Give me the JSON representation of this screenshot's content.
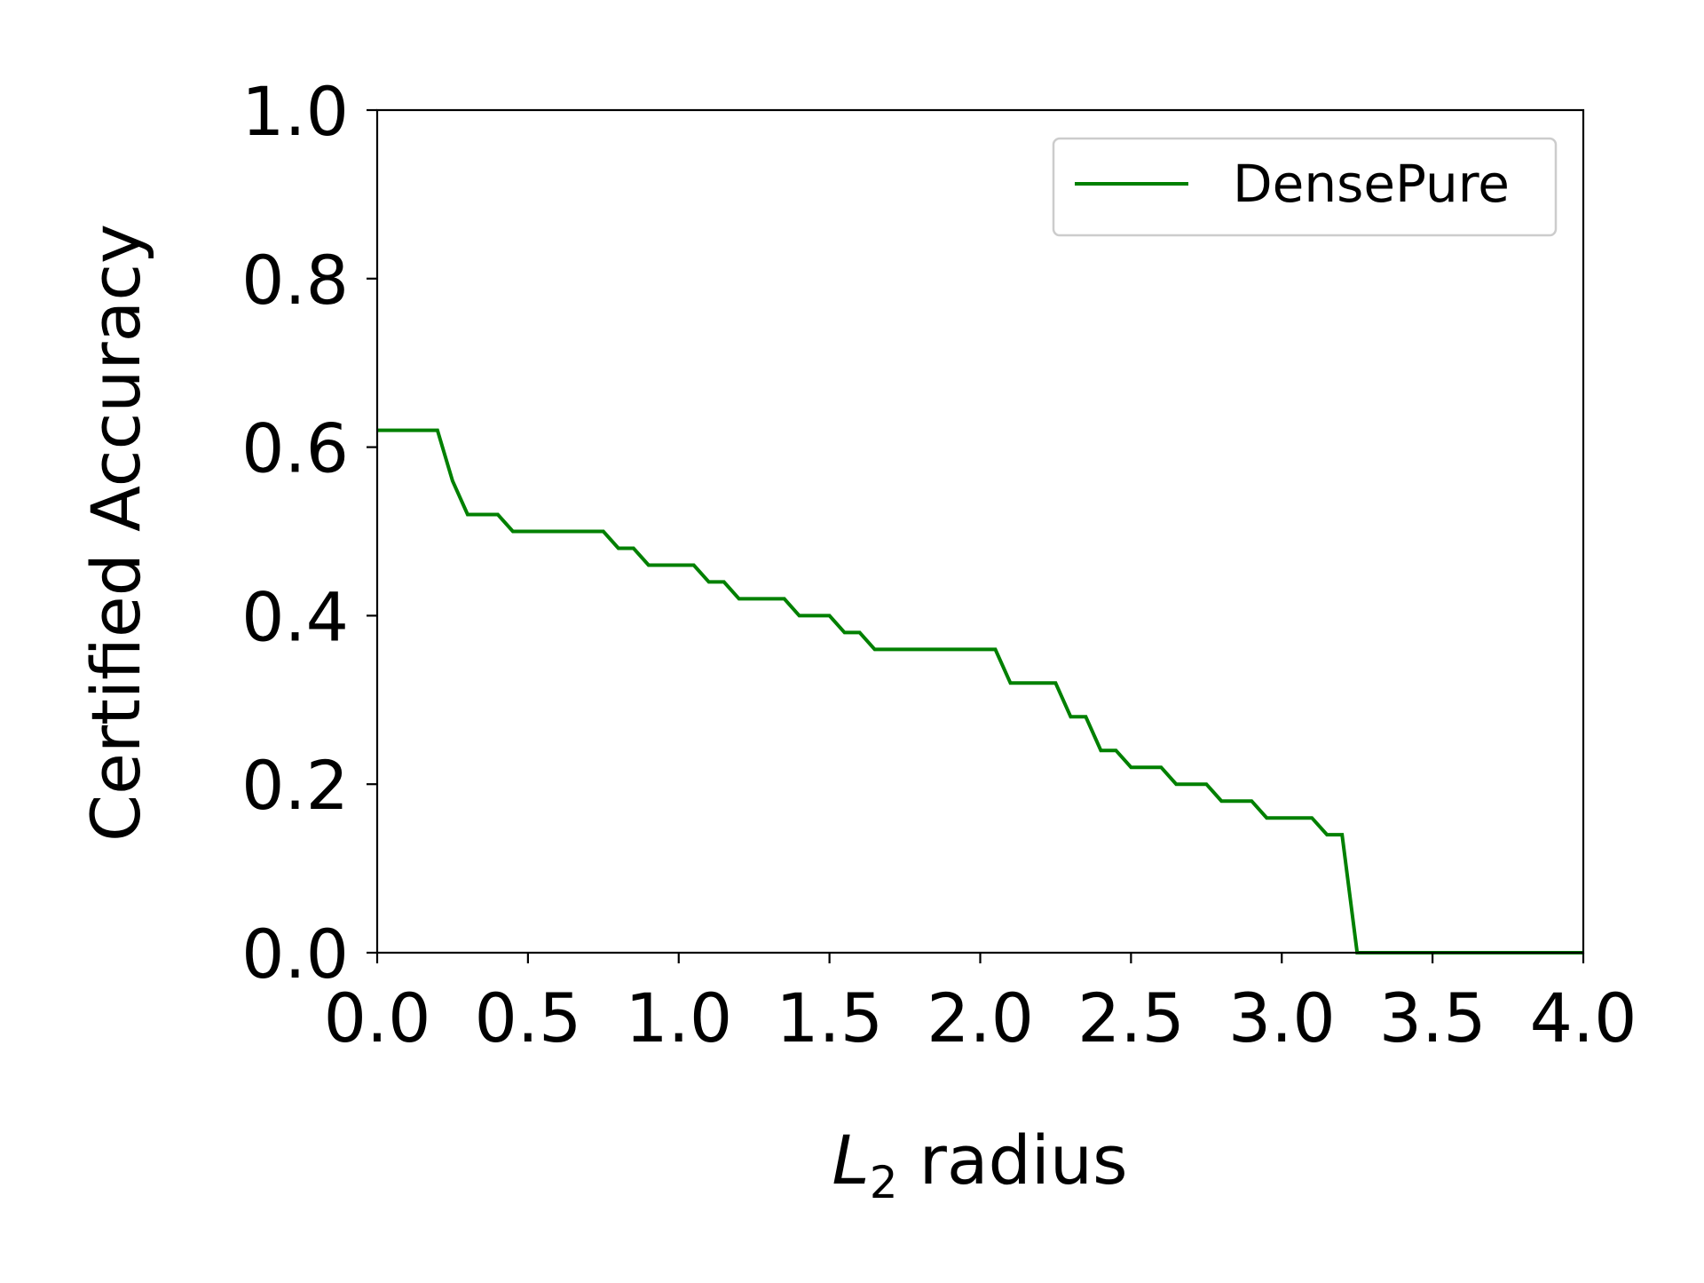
{
  "chart_data": {
    "type": "line",
    "title": "",
    "xlabel_main": "L",
    "xlabel_sub": "2",
    "xlabel_rest": " radius",
    "ylabel": "Certified Accuracy",
    "xlim": [
      0.0,
      4.0
    ],
    "ylim": [
      0.0,
      1.0
    ],
    "x_ticks": [
      "0.0",
      "0.5",
      "1.0",
      "1.5",
      "2.0",
      "2.5",
      "3.0",
      "3.5",
      "4.0"
    ],
    "y_ticks": [
      "0.0",
      "0.2",
      "0.4",
      "0.6",
      "0.8",
      "1.0"
    ],
    "grid": false,
    "legend_position": "upper-right",
    "series": [
      {
        "name": "DensePure",
        "color": "#008000",
        "x": [
          0.0,
          0.2,
          0.25,
          0.3,
          0.4,
          0.45,
          0.75,
          0.8,
          0.85,
          0.9,
          1.05,
          1.1,
          1.15,
          1.2,
          1.35,
          1.4,
          1.5,
          1.55,
          1.6,
          1.65,
          2.05,
          2.1,
          2.25,
          2.3,
          2.35,
          2.4,
          2.45,
          2.5,
          2.6,
          2.65,
          2.75,
          2.8,
          2.9,
          2.95,
          3.1,
          3.15,
          3.2,
          3.25,
          4.0
        ],
        "y": [
          0.62,
          0.62,
          0.56,
          0.52,
          0.52,
          0.5,
          0.5,
          0.48,
          0.48,
          0.46,
          0.46,
          0.44,
          0.44,
          0.42,
          0.42,
          0.4,
          0.4,
          0.38,
          0.38,
          0.36,
          0.36,
          0.32,
          0.32,
          0.28,
          0.28,
          0.24,
          0.24,
          0.22,
          0.22,
          0.2,
          0.2,
          0.18,
          0.18,
          0.16,
          0.16,
          0.14,
          0.14,
          0.0,
          0.0
        ]
      }
    ]
  }
}
